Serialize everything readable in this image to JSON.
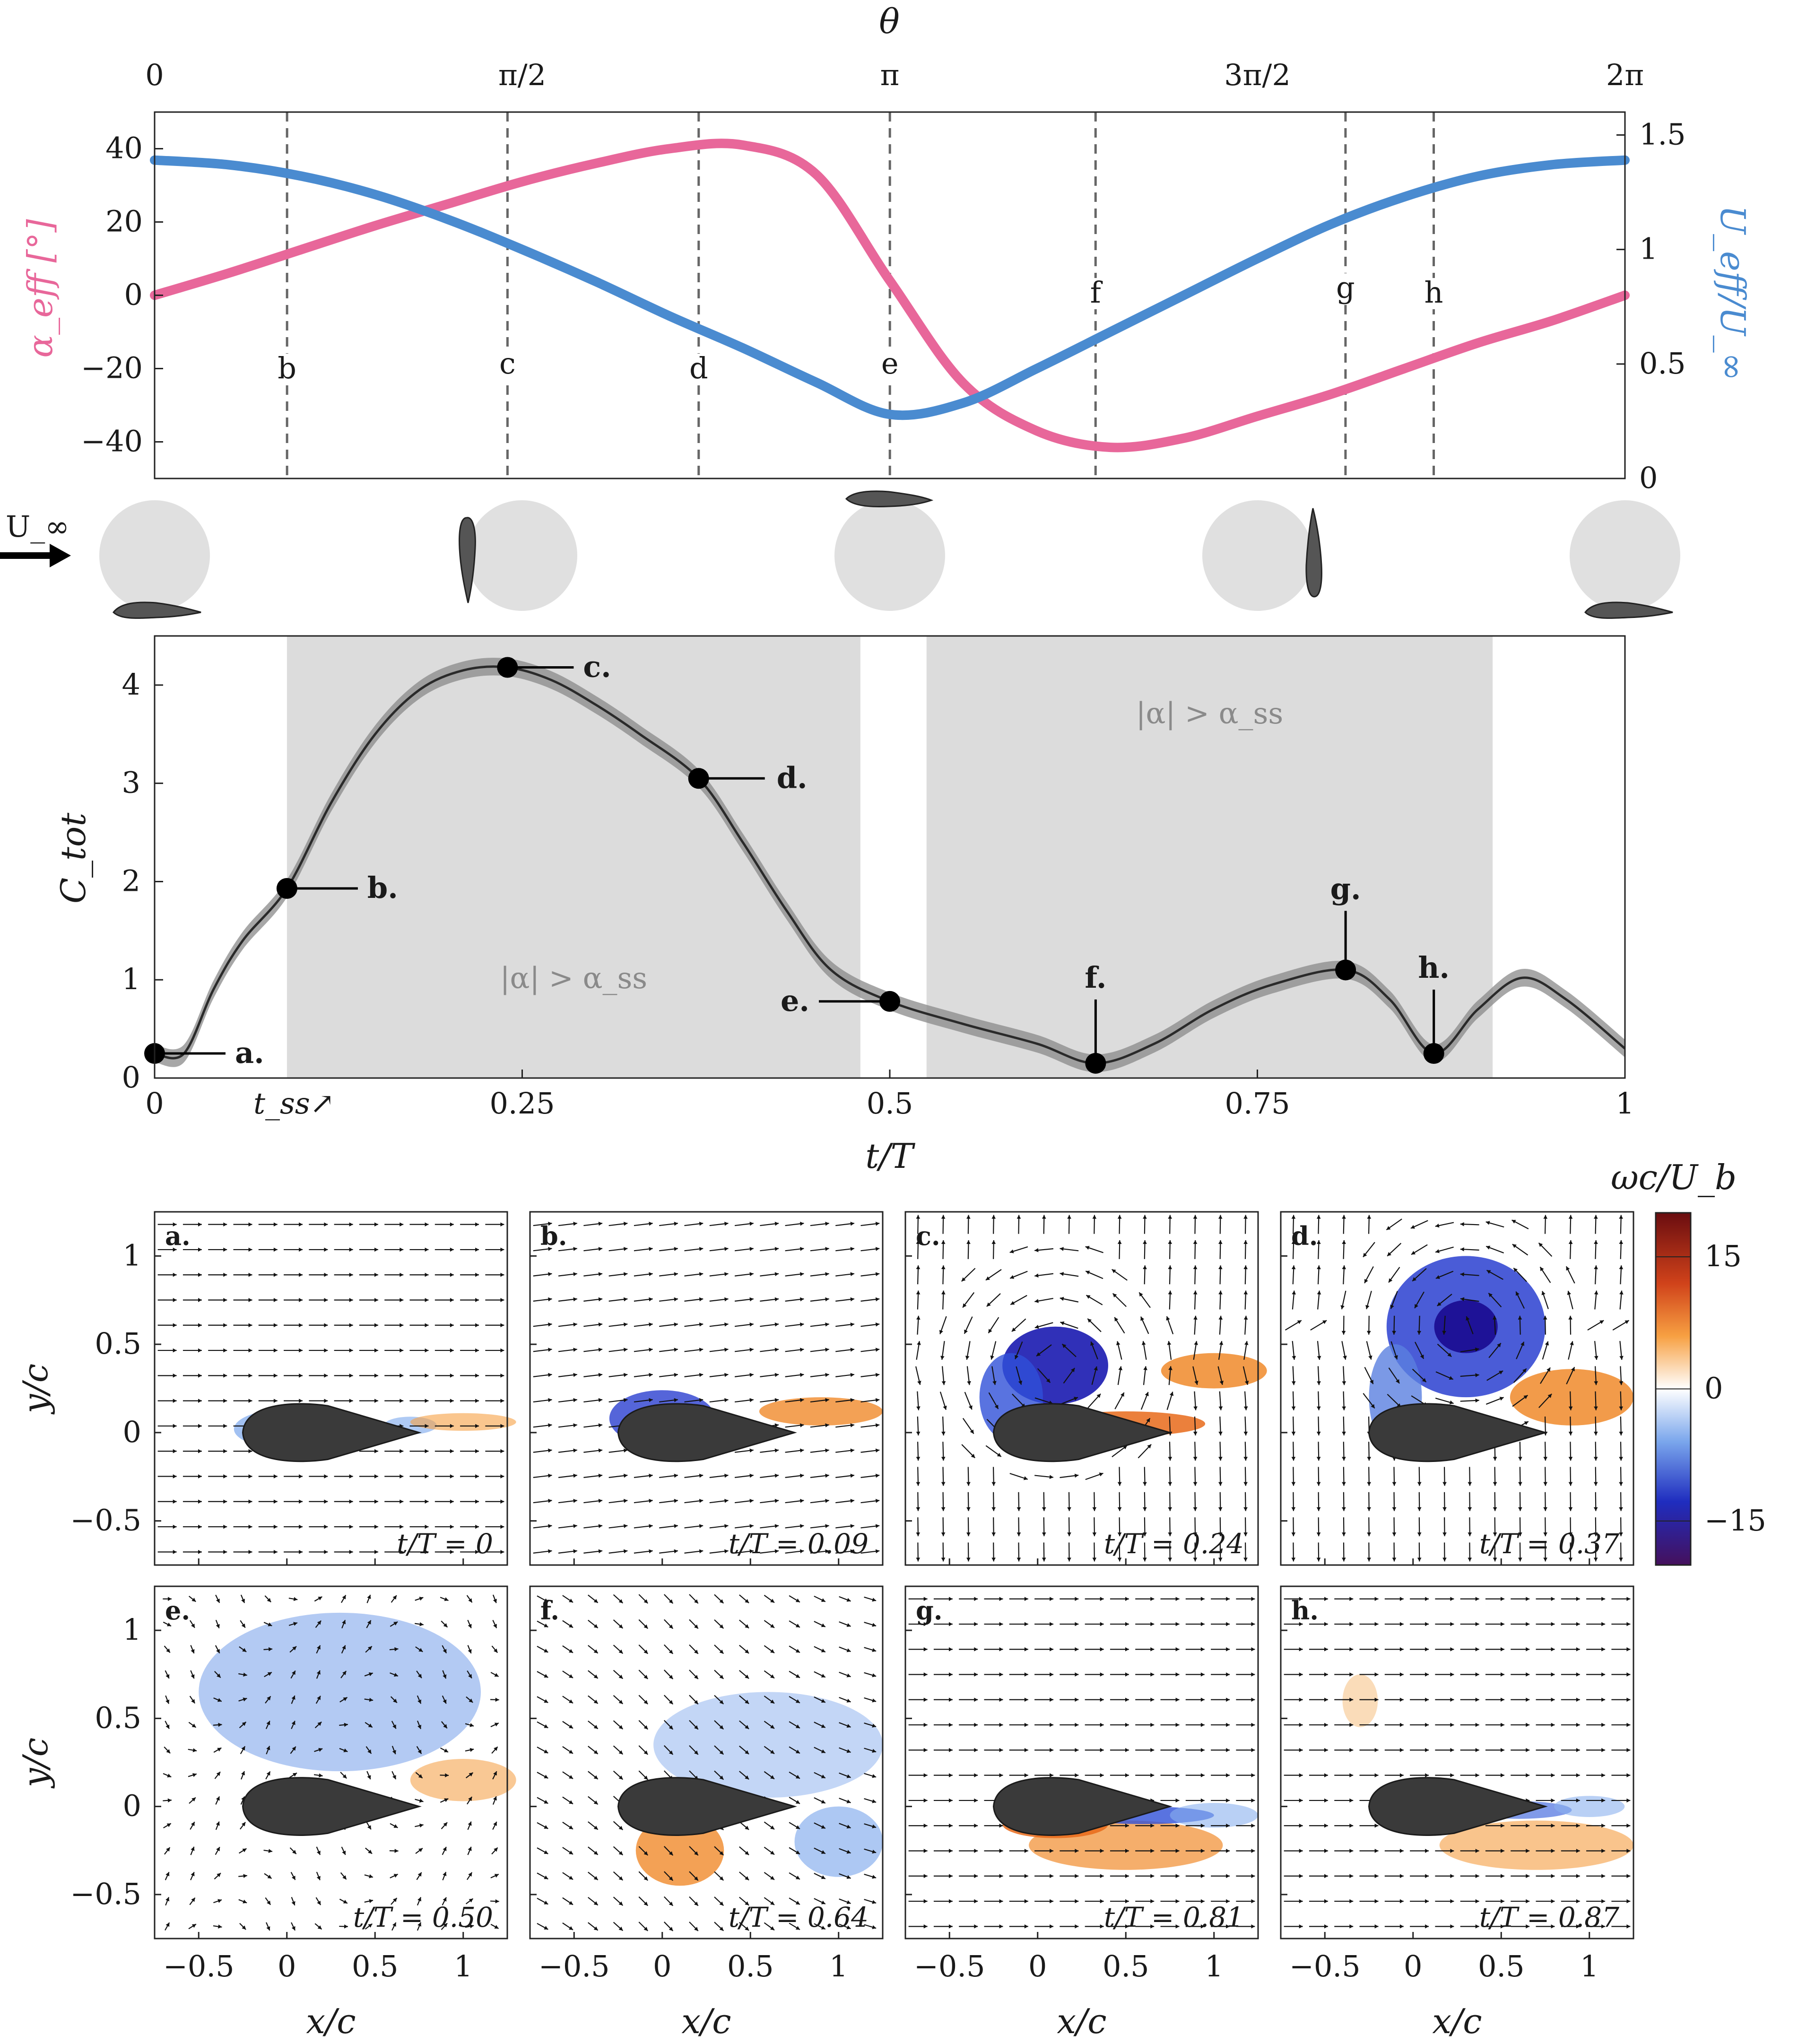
{
  "chart_data": [
    {
      "type": "line",
      "x_axis": {
        "label": "θ",
        "range": [
          0,
          6.2832
        ],
        "ticks": [
          0,
          1.5708,
          3.1416,
          4.7124,
          6.2832
        ],
        "tick_labels": [
          "0",
          "π/2",
          "π",
          "3π/2",
          "2π"
        ]
      },
      "y_left": {
        "label": "α_eff [°]",
        "range": [
          -50,
          50
        ],
        "ticks": [
          -40,
          -20,
          0,
          20,
          40
        ],
        "tick_labels": [
          "−40",
          "−20",
          "0",
          "20",
          "40"
        ],
        "color": "#e8679a"
      },
      "y_right": {
        "label": "U_eff/U_∞",
        "range": [
          0,
          1.6
        ],
        "ticks": [
          0,
          0.5,
          1,
          1.5
        ],
        "tick_labels": [
          "0",
          "0.5",
          "1",
          "1.5"
        ],
        "color": "#4a8bd0"
      },
      "series": [
        {
          "axis": "left",
          "color": "#e8679a",
          "x": [
            0,
            0.3142,
            0.6283,
            0.9425,
            1.2566,
            1.5708,
            1.885,
            2.1991,
            2.5133,
            2.8274,
            3.1416,
            3.4558,
            3.7699,
            4.0841,
            4.3982,
            4.7124,
            5.0265,
            5.3407,
            5.6549,
            5.969,
            6.2832
          ],
          "y": [
            0,
            6,
            12.5,
            19,
            25,
            31,
            36,
            40,
            41,
            33,
            4,
            -24,
            -37,
            -41.5,
            -39,
            -33,
            -27,
            -20,
            -13,
            -7,
            0
          ]
        },
        {
          "axis": "right",
          "color": "#4a8bd0",
          "x": [
            0,
            0.3142,
            0.6283,
            0.9425,
            1.2566,
            1.5708,
            1.885,
            2.1991,
            2.5133,
            2.8274,
            3.1416,
            3.4558,
            3.7699,
            4.0841,
            4.3982,
            4.7124,
            5.0265,
            5.3407,
            5.6549,
            5.969,
            6.2832
          ],
          "y": [
            1.39,
            1.37,
            1.32,
            1.24,
            1.13,
            1.0,
            0.86,
            0.71,
            0.57,
            0.42,
            0.28,
            0.33,
            0.48,
            0.64,
            0.8,
            0.96,
            1.11,
            1.23,
            1.32,
            1.37,
            1.39
          ]
        }
      ],
      "markers": [
        {
          "label": "b",
          "x": 0.566
        },
        {
          "label": "c",
          "x": 1.508
        },
        {
          "label": "d",
          "x": 2.325
        },
        {
          "label": "e",
          "x": 3.142
        },
        {
          "label": "f",
          "x": 4.021
        },
        {
          "label": "g",
          "x": 5.089
        },
        {
          "label": "h",
          "x": 5.466
        }
      ]
    },
    {
      "type": "line",
      "xlabel": "t/T",
      "ylabel": "C_tot",
      "xlim": [
        0,
        1
      ],
      "ylim": [
        0,
        4.5
      ],
      "x_ticks": [
        0,
        0.25,
        0.5,
        0.75,
        1
      ],
      "x_tick_labels": [
        "0",
        "0.25",
        "0.5",
        "0.75",
        "1"
      ],
      "extra_x_tick": {
        "x": 0.09,
        "label": "t_ss↗"
      },
      "y_ticks": [
        0,
        1,
        2,
        3,
        4
      ],
      "y_tick_labels": [
        "0",
        "1",
        "2",
        "3",
        "4"
      ],
      "shaded_regions": [
        {
          "x": [
            0.09,
            0.48
          ],
          "label": "|α| > α_ss"
        },
        {
          "x": [
            0.525,
            0.91
          ],
          "label": "|α| > α_ss"
        }
      ],
      "x": [
        0,
        0.02,
        0.04,
        0.06,
        0.09,
        0.12,
        0.15,
        0.18,
        0.21,
        0.24,
        0.27,
        0.3,
        0.33,
        0.37,
        0.4,
        0.43,
        0.46,
        0.5,
        0.55,
        0.6,
        0.64,
        0.68,
        0.72,
        0.76,
        0.81,
        0.84,
        0.87,
        0.9,
        0.93,
        0.96,
        1.0
      ],
      "y": [
        0.25,
        0.25,
        0.9,
        1.4,
        1.93,
        2.8,
        3.5,
        3.95,
        4.15,
        4.18,
        4.05,
        3.8,
        3.5,
        3.05,
        2.4,
        1.7,
        1.1,
        0.78,
        0.55,
        0.35,
        0.15,
        0.35,
        0.7,
        0.95,
        1.1,
        0.8,
        0.25,
        0.7,
        1.02,
        0.8,
        0.3
      ],
      "band_half_width": 0.09,
      "points": [
        {
          "label": "a.",
          "x": 0.0,
          "y": 0.25
        },
        {
          "label": "b.",
          "x": 0.09,
          "y": 1.93
        },
        {
          "label": "c.",
          "x": 0.24,
          "y": 4.18
        },
        {
          "label": "d.",
          "x": 0.37,
          "y": 3.05
        },
        {
          "label": "e.",
          "x": 0.5,
          "y": 0.78
        },
        {
          "label": "f.",
          "x": 0.64,
          "y": 0.15
        },
        {
          "label": "g.",
          "x": 0.81,
          "y": 1.1
        },
        {
          "label": "h.",
          "x": 0.87,
          "y": 0.25
        }
      ]
    },
    {
      "type": "heatmap",
      "xlabel": "x/c",
      "ylabel": "y/c",
      "xlim": [
        -0.75,
        1.25
      ],
      "ylim": [
        -0.75,
        1.25
      ],
      "x_ticks": [
        -0.5,
        0,
        0.5,
        1
      ],
      "x_tick_labels": [
        "−0.5",
        "0",
        "0.5",
        "1"
      ],
      "y_ticks": [
        -0.5,
        0,
        0.5,
        1
      ],
      "y_tick_labels": [
        "−0.5",
        "0",
        "0.5",
        "1"
      ],
      "colorbar": {
        "label": "ωc/U_b",
        "range": [
          -20,
          20
        ],
        "ticks": [
          -15,
          0,
          15
        ],
        "tick_labels": [
          "−15",
          "0",
          "15"
        ]
      },
      "panels": [
        {
          "label": "a.",
          "time": "t/T = 0"
        },
        {
          "label": "b.",
          "time": "t/T = 0.09"
        },
        {
          "label": "c.",
          "time": "t/T = 0.24"
        },
        {
          "label": "d.",
          "time": "t/T = 0.37"
        },
        {
          "label": "e.",
          "time": "t/T = 0.50"
        },
        {
          "label": "f.",
          "time": "t/T = 0.64"
        },
        {
          "label": "g.",
          "time": "t/T = 0.81"
        },
        {
          "label": "h.",
          "time": "t/T = 0.87"
        }
      ]
    }
  ],
  "schematic": {
    "freestream_label": "U_∞"
  },
  "colors": {
    "alpha": "#e8679a",
    "ueff": "#4a8bd0",
    "shade": "#dcdcdc",
    "cylinder": "#e0e0e0",
    "airfoil": "#3a3a3a"
  }
}
